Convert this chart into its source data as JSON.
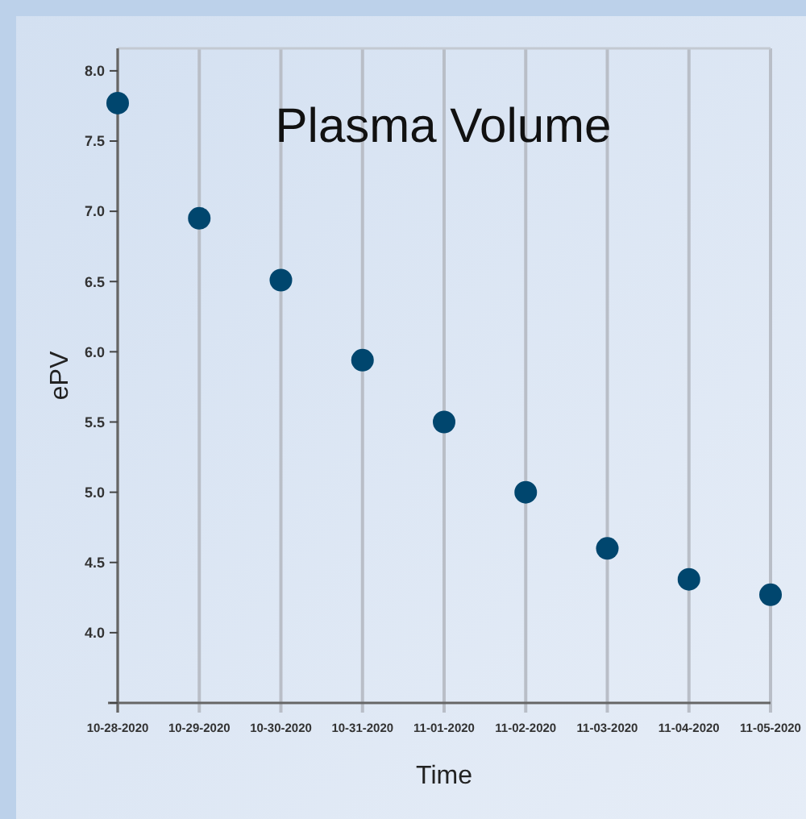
{
  "chart_data": {
    "type": "scatter",
    "title": "Plasma Volume",
    "xlabel": "Time",
    "ylabel": "ePV",
    "x": [
      "2020-10-28",
      "2020-10-29",
      "2020-10-30",
      "2020-10-31",
      "2020-11-01",
      "2020-11-02",
      "2020-11-03",
      "2020-11-04",
      "2020-11-05"
    ],
    "series": [
      {
        "color": "#00466e",
        "values": [
          7.77,
          6.95,
          6.51,
          5.94,
          5.5,
          5.0,
          4.6,
          4.38,
          4.27
        ]
      }
    ],
    "xlim": [
      "2020-10-28",
      "2020-11-05"
    ],
    "xticks": [
      {
        "value": "2020-10-28",
        "label": "10-28-2020"
      },
      {
        "value": "2020-10-29",
        "label": "10-29-2020"
      },
      {
        "value": "2020-10-30",
        "label": "10-30-2020"
      },
      {
        "value": "2020-10-31",
        "label": "10-31-2020"
      },
      {
        "value": "2020-11-01",
        "label": "11-01-2020"
      },
      {
        "value": "2020-11-02",
        "label": "11-02-2020"
      },
      {
        "value": "2020-11-03",
        "label": "11-03-2020"
      },
      {
        "value": "2020-11-04",
        "label": "11-04-2020"
      },
      {
        "value": "2020-11-05",
        "label": "11-05-2020"
      }
    ],
    "ylim": [
      3.5,
      8.16
    ],
    "yticks": [
      {
        "value": 3.5,
        "label": null
      },
      {
        "value": 4,
        "label": "4.0"
      },
      4.5,
      {
        "value": 5,
        "label": "5.0"
      },
      5.5,
      {
        "value": 6,
        "label": "6.0"
      },
      6.5,
      {
        "value": 7,
        "label": "7.0"
      },
      7.5,
      {
        "value": 8,
        "label": "8.0"
      }
    ],
    "grid": "x",
    "marker": "circle"
  }
}
